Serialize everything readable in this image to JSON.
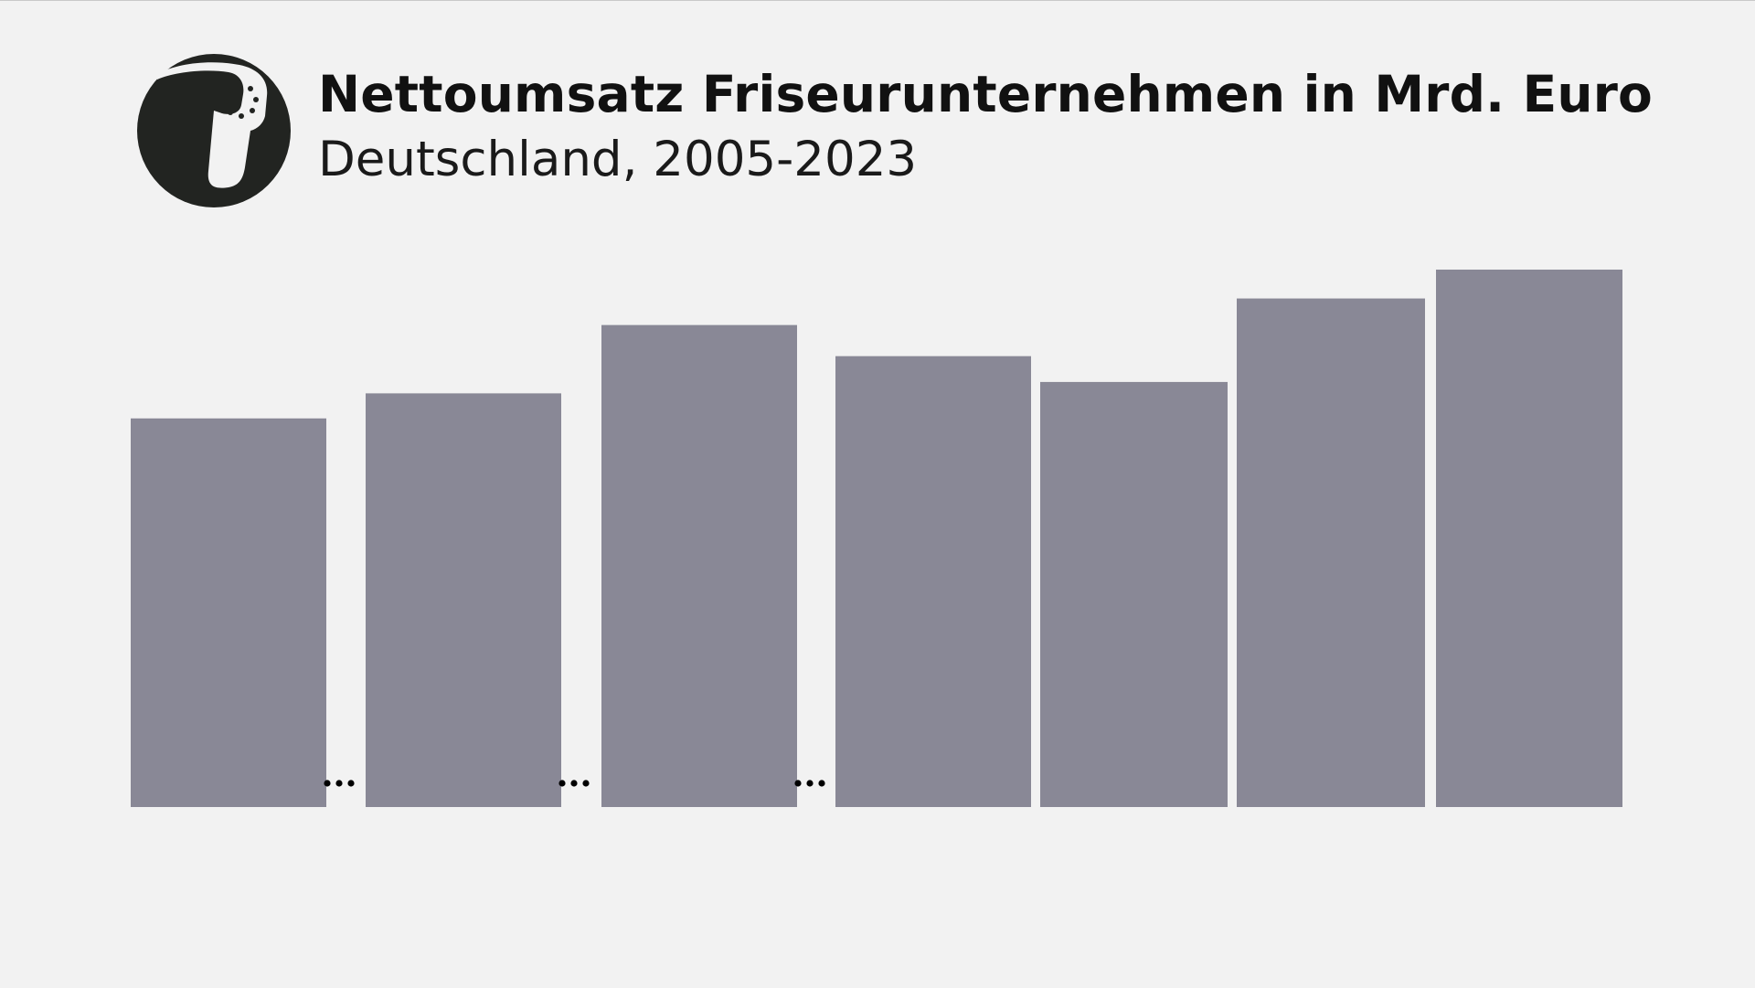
{
  "header": {
    "icon": "hair-dryer-icon",
    "title": "Nettoumsatz Friseurunternehmen in Mrd. Euro",
    "subtitle": "Deutschland, 2005-2023"
  },
  "colors": {
    "background": "#f2f2f2",
    "bar": "#898896",
    "icon_circle": "#222421",
    "icon_fill": "#f2f2f2",
    "gap_marker": "#000000"
  },
  "chart_data": {
    "type": "bar",
    "title": "Nettoumsatz Friseurunternehmen in Mrd. Euro",
    "subtitle": "Deutschland, 2005-2023",
    "xlabel": "",
    "ylabel": "",
    "values": [
      5.12,
      5.45,
      6.35,
      5.94,
      5.6,
      6.7,
      7.08
    ],
    "axis_break_after_index": [
      0,
      1,
      2
    ],
    "ylim": [
      0,
      7.08
    ],
    "grid": false,
    "legend": "none"
  }
}
